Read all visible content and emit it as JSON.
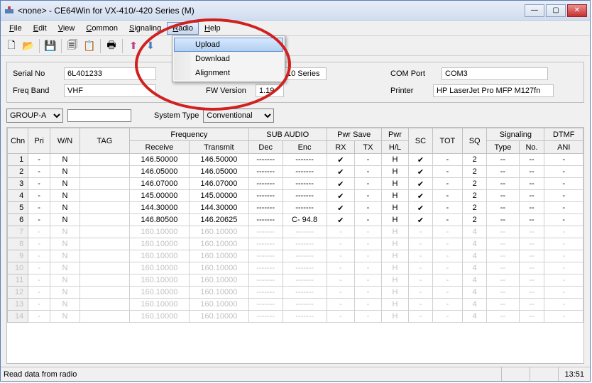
{
  "window": {
    "title": "<none> - CE64Win for VX-410/-420 Series (M)"
  },
  "menubar": {
    "file": "File",
    "edit": "Edit",
    "view": "View",
    "common": "Common",
    "signaling": "Signaling",
    "radio": "Radio",
    "help": "Help"
  },
  "dropdown": {
    "upload": "Upload",
    "download": "Download",
    "alignment": "Alignment"
  },
  "toolbar_icons": [
    "📄",
    "📂",
    "💾",
    "📋",
    "📄",
    "🗂",
    "🖨",
    "🔍",
    "🔎",
    "➡"
  ],
  "info": {
    "serial_label": "Serial No",
    "serial_value": "6L401233",
    "model_suffix": "10 Series",
    "comport_label": "COM Port",
    "comport_value": "COM3",
    "freq_label": "Freq Band",
    "freq_value": "VHF",
    "fwver_label": "FW Version",
    "fwver_value": "1.19",
    "printer_label": "Printer",
    "printer_value": "HP LaserJet Pro MFP M127fn"
  },
  "controls": {
    "group": "GROUP-A",
    "group_text": "",
    "systype_label": "System Type",
    "systype_value": "Conventional"
  },
  "columns": {
    "chn": "Chn",
    "pri": "Pri",
    "wn": "W/N",
    "tag": "TAG",
    "freq_group": "Frequency",
    "receive": "Receive",
    "transmit": "Transmit",
    "sub_group": "SUB AUDIO",
    "dec": "Dec",
    "enc": "Enc",
    "pwrsave_group": "Pwr Save",
    "rx": "RX",
    "tx": "TX",
    "pwr_group": "Pwr",
    "hl": "H/L",
    "sc": "SC",
    "tot": "TOT",
    "sq": "SQ",
    "sig_group": "Signaling",
    "type": "Type",
    "no": "No.",
    "dtmf_group": "DTMF",
    "ani": "ANI"
  },
  "rows_active": [
    {
      "chn": "1",
      "pri": "-",
      "wn": "N",
      "tag": "",
      "rx": "146.50000",
      "tx": "146.50000",
      "dec": "-------",
      "enc": "-------",
      "prx": "✔",
      "ptx": "-",
      "hl": "H",
      "sc": "✔",
      "tot": "-",
      "sq": "2",
      "stype": "--",
      "sno": "--",
      "ani": "-"
    },
    {
      "chn": "2",
      "pri": "-",
      "wn": "N",
      "tag": "",
      "rx": "146.05000",
      "tx": "146.05000",
      "dec": "-------",
      "enc": "-------",
      "prx": "✔",
      "ptx": "-",
      "hl": "H",
      "sc": "✔",
      "tot": "-",
      "sq": "2",
      "stype": "--",
      "sno": "--",
      "ani": "-"
    },
    {
      "chn": "3",
      "pri": "-",
      "wn": "N",
      "tag": "",
      "rx": "146.07000",
      "tx": "146.07000",
      "dec": "-------",
      "enc": "-------",
      "prx": "✔",
      "ptx": "-",
      "hl": "H",
      "sc": "✔",
      "tot": "-",
      "sq": "2",
      "stype": "--",
      "sno": "--",
      "ani": "-"
    },
    {
      "chn": "4",
      "pri": "-",
      "wn": "N",
      "tag": "",
      "rx": "145.00000",
      "tx": "145.00000",
      "dec": "-------",
      "enc": "-------",
      "prx": "✔",
      "ptx": "-",
      "hl": "H",
      "sc": "✔",
      "tot": "-",
      "sq": "2",
      "stype": "--",
      "sno": "--",
      "ani": "-"
    },
    {
      "chn": "5",
      "pri": "-",
      "wn": "N",
      "tag": "",
      "rx": "144.30000",
      "tx": "144.30000",
      "dec": "-------",
      "enc": "-------",
      "prx": "✔",
      "ptx": "-",
      "hl": "H",
      "sc": "✔",
      "tot": "-",
      "sq": "2",
      "stype": "--",
      "sno": "--",
      "ani": "-"
    },
    {
      "chn": "6",
      "pri": "-",
      "wn": "N",
      "tag": "",
      "rx": "146.80500",
      "tx": "146.20625",
      "dec": "-------",
      "enc": "C- 94.8",
      "prx": "✔",
      "ptx": "-",
      "hl": "H",
      "sc": "✔",
      "tot": "-",
      "sq": "2",
      "stype": "--",
      "sno": "--",
      "ani": "-"
    }
  ],
  "rows_disabled": [
    {
      "chn": "7"
    },
    {
      "chn": "8"
    },
    {
      "chn": "9"
    },
    {
      "chn": "10"
    },
    {
      "chn": "11"
    },
    {
      "chn": "12"
    },
    {
      "chn": "13"
    },
    {
      "chn": "14"
    }
  ],
  "disabled_template": {
    "pri": "-",
    "wn": "N",
    "tag": "",
    "rx": "160.10000",
    "tx": "160.10000",
    "dec": "-------",
    "enc": "-------",
    "prx": "-",
    "ptx": "-",
    "hl": "H",
    "sc": "-",
    "tot": "-",
    "sq": "4",
    "stype": "--",
    "sno": "--",
    "ani": "-"
  },
  "status": {
    "text": "Read data from radio",
    "time": "13:51"
  },
  "colors": {
    "annotation": "#d02020",
    "highlight_bg_top": "#d8e8ff",
    "highlight_bg_bot": "#b0d0f0"
  }
}
